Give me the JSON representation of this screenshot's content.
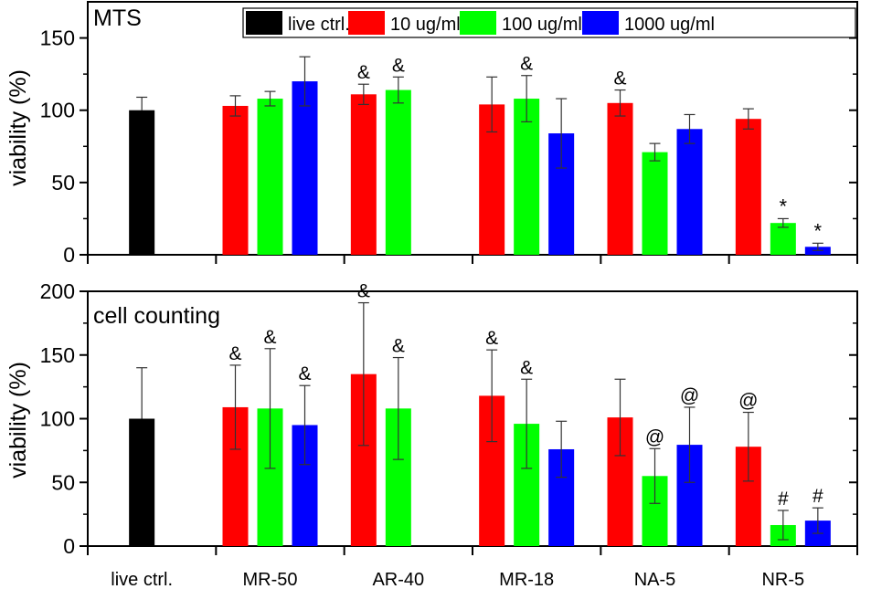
{
  "chart_data": [
    {
      "type": "bar",
      "panel": "top",
      "title": "MTS",
      "xlabel": "",
      "ylabel": "viability (%)",
      "ylim": [
        0,
        175
      ],
      "yticks": [
        0,
        50,
        100,
        150
      ],
      "ytick_labels": [
        "0",
        "50",
        "100",
        "150"
      ],
      "minor_tick_step": 25,
      "categories": [
        "live ctrl.",
        "MR-50",
        "AR-40",
        "MR-18",
        "NA-5",
        "NR-5"
      ],
      "show_xtick_labels": false,
      "legend": {
        "placement": "top-right",
        "entries": [
          {
            "label": "live ctrl.",
            "color": "#000000"
          },
          {
            "label": "10 ug/ml",
            "color": "#ff0000"
          },
          {
            "label": "100 ug/ml",
            "color": "#00ff00"
          },
          {
            "label": "1000 ug/ml",
            "color": "#0000ff"
          }
        ]
      },
      "series": [
        {
          "name": "live ctrl.",
          "color": "#000000",
          "values": [
            100,
            null,
            null,
            null,
            null,
            null
          ],
          "errors": [
            9,
            null,
            null,
            null,
            null,
            null
          ],
          "annotations": [
            null,
            null,
            null,
            null,
            null,
            null
          ]
        },
        {
          "name": "10 ug/ml",
          "color": "#ff0000",
          "values": [
            null,
            103,
            111,
            104,
            105,
            94
          ],
          "errors": [
            null,
            7,
            7,
            19,
            9,
            7
          ],
          "annotations": [
            null,
            null,
            "&",
            null,
            "&",
            null
          ]
        },
        {
          "name": "100 ug/ml",
          "color": "#00ff00",
          "values": [
            null,
            108,
            114,
            108,
            71,
            22
          ],
          "errors": [
            null,
            5,
            9,
            16,
            6,
            3
          ],
          "annotations": [
            null,
            null,
            "&",
            "&",
            null,
            "*"
          ]
        },
        {
          "name": "1000 ug/ml",
          "color": "#0000ff",
          "values": [
            null,
            120,
            null,
            84,
            87,
            5.5
          ],
          "errors": [
            null,
            17,
            null,
            24,
            10,
            2.5
          ],
          "annotations": [
            null,
            null,
            null,
            null,
            null,
            "*"
          ]
        }
      ]
    },
    {
      "type": "bar",
      "panel": "bottom",
      "title": "cell counting",
      "xlabel": "",
      "ylabel": "viability (%)",
      "ylim": [
        0,
        200
      ],
      "yticks": [
        0,
        50,
        100,
        150,
        200
      ],
      "ytick_labels": [
        "0",
        "50",
        "100",
        "150",
        "200"
      ],
      "minor_tick_step": 25,
      "categories": [
        "live ctrl.",
        "MR-50",
        "AR-40",
        "MR-18",
        "NA-5",
        "NR-5"
      ],
      "show_xtick_labels": true,
      "series": [
        {
          "name": "live ctrl.",
          "color": "#000000",
          "values": [
            100,
            null,
            null,
            null,
            null,
            null
          ],
          "errors": [
            40,
            null,
            null,
            null,
            null,
            null
          ],
          "annotations": [
            null,
            null,
            null,
            null,
            null,
            null
          ]
        },
        {
          "name": "10 ug/ml",
          "color": "#ff0000",
          "values": [
            null,
            109,
            135,
            118,
            101,
            78
          ],
          "errors": [
            null,
            33,
            56,
            36,
            30,
            27
          ],
          "annotations": [
            null,
            "&",
            "&",
            "&",
            null,
            "@"
          ]
        },
        {
          "name": "100 ug/ml",
          "color": "#00ff00",
          "values": [
            null,
            108,
            108,
            96,
            55,
            16.5
          ],
          "errors": [
            null,
            47,
            40,
            35,
            21.5,
            11.5
          ],
          "annotations": [
            null,
            "&",
            "&",
            "&",
            "@",
            "#"
          ]
        },
        {
          "name": "1000 ug/ml",
          "color": "#0000ff",
          "values": [
            null,
            95,
            null,
            76,
            79.5,
            20
          ],
          "errors": [
            null,
            31,
            null,
            22,
            29.5,
            10
          ],
          "annotations": [
            null,
            "&",
            null,
            null,
            "@",
            "#"
          ]
        }
      ]
    }
  ]
}
